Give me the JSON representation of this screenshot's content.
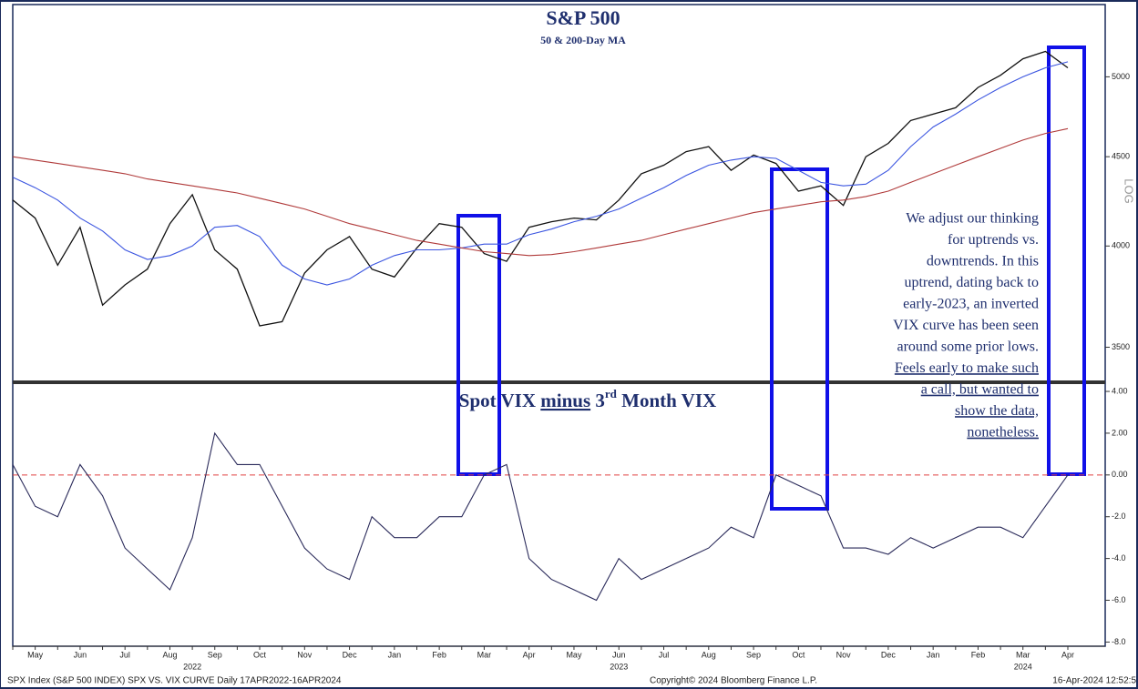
{
  "chart_data": [
    {
      "type": "line",
      "title": "S&P 500",
      "subtitle": "50 & 200-Day MA",
      "log": true,
      "axis_label": "LOG",
      "ylim": [
        3350,
        5500
      ],
      "yticks": [
        3500,
        4000,
        4500,
        5000
      ],
      "series": [
        {
          "name": "S&P 500",
          "color": "#111111",
          "values": [
            4250,
            4150,
            3900,
            4100,
            3700,
            3800,
            3880,
            4120,
            4280,
            3980,
            3880,
            3600,
            3620,
            3860,
            3980,
            4050,
            3880,
            3840,
            3990,
            4120,
            4100,
            3960,
            3920,
            4100,
            4130,
            4150,
            4140,
            4250,
            4400,
            4450,
            4530,
            4560,
            4420,
            4510,
            4460,
            4300,
            4330,
            4220,
            4500,
            4580,
            4720,
            4760,
            4800,
            4930,
            5010,
            5120,
            5170,
            5060
          ]
        },
        {
          "name": "50-Day MA",
          "color": "#3b55e0",
          "values": [
            4380,
            4320,
            4250,
            4150,
            4080,
            3980,
            3930,
            3950,
            4000,
            4100,
            4110,
            4050,
            3900,
            3830,
            3800,
            3830,
            3900,
            3950,
            3980,
            3980,
            3990,
            4010,
            4010,
            4060,
            4090,
            4130,
            4160,
            4200,
            4260,
            4320,
            4390,
            4450,
            4480,
            4500,
            4490,
            4420,
            4350,
            4330,
            4340,
            4420,
            4560,
            4680,
            4760,
            4850,
            4930,
            5000,
            5060,
            5100
          ]
        },
        {
          "name": "200-Day MA",
          "color": "#b03a3a",
          "values": [
            4500,
            4480,
            4460,
            4440,
            4420,
            4400,
            4370,
            4350,
            4330,
            4310,
            4290,
            4260,
            4230,
            4200,
            4160,
            4120,
            4090,
            4060,
            4030,
            4010,
            3990,
            3970,
            3960,
            3950,
            3955,
            3970,
            3990,
            4010,
            4030,
            4060,
            4090,
            4120,
            4150,
            4180,
            4200,
            4220,
            4240,
            4250,
            4270,
            4300,
            4350,
            4400,
            4450,
            4500,
            4550,
            4600,
            4640,
            4670
          ]
        }
      ],
      "annotation": {
        "lines": [
          "We adjust our thinking",
          "for uptrends vs.",
          "downtrends.  In this",
          "uptrend, dating back to",
          "early-2023, an inverted",
          "VIX curve has been seen",
          "around some prior lows."
        ],
        "underlined_lines": [
          "Feels early to make such",
          "a call, but wanted to",
          "show the data,",
          "nonetheless."
        ]
      }
    },
    {
      "type": "line",
      "title_parts": [
        "Spot VIX ",
        "minus",
        " 3",
        "rd",
        " Month VIX"
      ],
      "ylim": [
        -8.2,
        4.35
      ],
      "yticks": [
        {
          "value": 4,
          "label": "4.00"
        },
        {
          "value": 2,
          "label": "2.00"
        },
        {
          "value": 0,
          "label": "0.00"
        },
        {
          "value": -2,
          "label": "-2.0"
        },
        {
          "value": -4,
          "label": "-4.0"
        },
        {
          "value": -6,
          "label": "-6.0"
        },
        {
          "value": -8,
          "label": "-8.0"
        }
      ],
      "reference_line": 0,
      "reference_color": "#e04040",
      "categories": [
        null,
        "May",
        null,
        "Jun",
        null,
        "Jul",
        null,
        "Aug",
        null,
        "Sep",
        null,
        "Oct",
        null,
        "Nov",
        null,
        "Dec",
        null,
        "Jan",
        null,
        "Feb",
        null,
        "Mar",
        null,
        "Apr",
        null,
        "May",
        null,
        "Jun",
        null,
        "Jul",
        null,
        "Aug",
        null,
        "Sep",
        null,
        "Oct",
        null,
        "Nov",
        null,
        "Dec",
        null,
        "Jan",
        null,
        "Feb",
        null,
        "Mar",
        null,
        "Apr"
      ],
      "year_labels": [
        "2022",
        "2023",
        "2024"
      ],
      "series": [
        {
          "name": "Spot VIX minus 3rd Month VIX",
          "color": "#2a2a5a",
          "values": [
            0.5,
            -1.5,
            -2.0,
            0.5,
            -1.0,
            -3.5,
            -4.5,
            -5.5,
            -3.0,
            2.0,
            0.5,
            0.5,
            -1.5,
            -3.5,
            -4.5,
            -5.0,
            -2.0,
            -3.0,
            -3.0,
            -2.0,
            -2.0,
            0.0,
            0.5,
            -4.0,
            -5.0,
            -5.5,
            -6.0,
            -4.0,
            -5.0,
            -4.5,
            -4.0,
            -3.5,
            -2.5,
            -3.0,
            0.0,
            -0.5,
            -1.0,
            -3.5,
            -3.5,
            -3.8,
            -3.0,
            -3.5,
            -3.0,
            -2.5,
            -2.5,
            -3.0,
            -1.5,
            0.0
          ]
        }
      ]
    }
  ],
  "footer": {
    "left": "SPX Index (S&P 500 INDEX) SPX VS. VIX CURVE  Daily 17APR2022-16APR2024",
    "center": "Copyright© 2024 Bloomberg Finance L.P.",
    "right": "16-Apr-2024 12:52:5"
  }
}
